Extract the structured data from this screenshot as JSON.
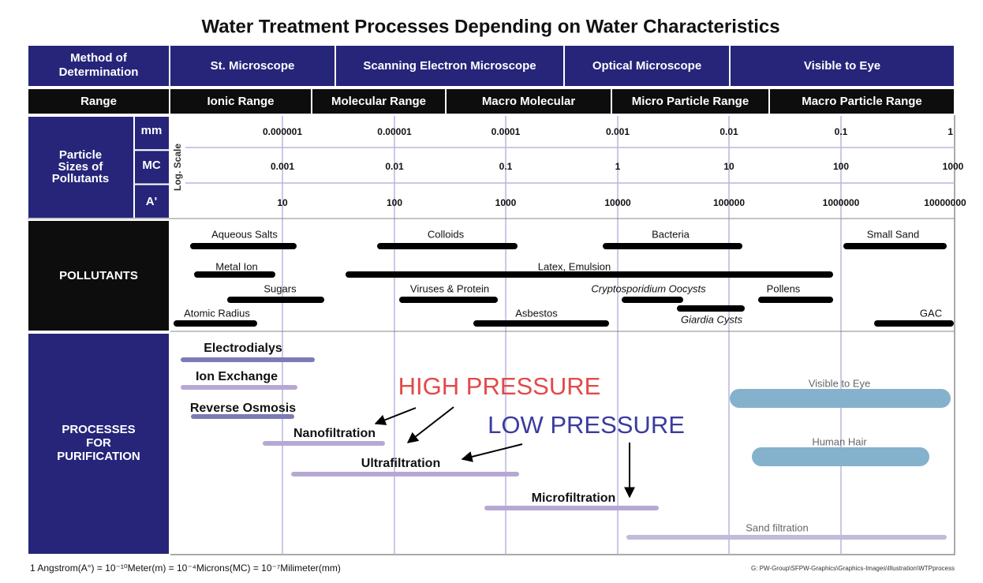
{
  "title": "Water Treatment Processes Depending on Water Characteristics",
  "header": {
    "method_label": "Method of Determination",
    "methods": [
      "St. Microscope",
      "Scanning Electron Microscope",
      "Optical Microscope",
      "Visible to Eye"
    ],
    "range_label": "Range",
    "ranges": [
      "Ionic Range",
      "Molecular Range",
      "Macro Molecular",
      "Micro Particle Range",
      "Macro Particle Range"
    ]
  },
  "particle_sizes": {
    "label": "Particle Sizes of Pollutants",
    "scale_label": "Log. Scale",
    "rows": [
      {
        "unit": "mm",
        "values": [
          "0.000001",
          "0.00001",
          "0.0001",
          "0.001",
          "0.01",
          "0.1",
          "1"
        ]
      },
      {
        "unit": "MC",
        "values": [
          "0.001",
          "0.01",
          "0.1",
          "1",
          "10",
          "100",
          "1000"
        ]
      },
      {
        "unit": "A'",
        "values": [
          "10",
          "100",
          "1000",
          "10000",
          "100000",
          "1000000",
          "10000000"
        ]
      }
    ]
  },
  "pollutants": {
    "label": "POLLUTANTS",
    "items": [
      "Aqueous Salts",
      "Colloids",
      "Bacteria",
      "Small Sand",
      "Metal Ion",
      "Latex, Emulsion",
      "Sugars",
      "Viruses & Protein",
      "Cryptosporidium Oocysts",
      "Pollens",
      "Giardia Cysts",
      "Atomic Radius",
      "Asbestos",
      "GAC"
    ]
  },
  "processes": {
    "label": "PROCESSES FOR PURIFICATION",
    "items": [
      "Electrodialys",
      "Ion Exchange",
      "Reverse Osmosis",
      "Nanofiltration",
      "Ultrafiltration",
      "Microfiltration",
      "Sand filtration",
      "Visible to Eye",
      "Human Hair"
    ]
  },
  "annotations": [
    "HIGH PRESSURE",
    "LOW PRESSURE"
  ],
  "footnote": "1 Angstrom(A°) = 10⁻¹⁰Meter(m) = 10⁻⁴Microns(MC) = 10⁻⁷Milimeter(mm)",
  "source": "G: PW-Group\\SFPW-Graphics\\Graphics-Images\\Illustration\\WTPprocess"
}
